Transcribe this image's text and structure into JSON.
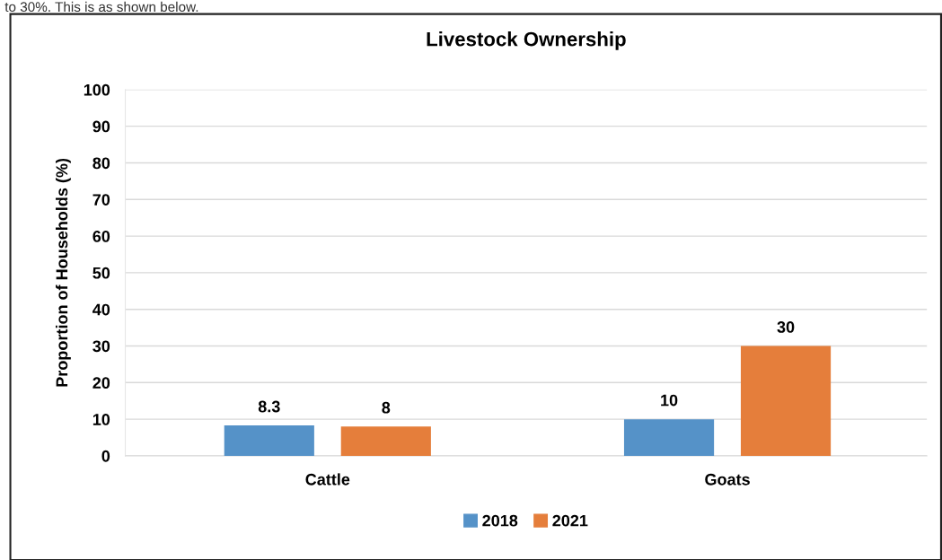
{
  "chart_data": {
    "type": "bar",
    "title": "Livestock Ownership",
    "ylabel": "Proportion of Households (%)",
    "categories": [
      "Cattle",
      "Goats"
    ],
    "series": [
      {
        "name": "2018",
        "color": "#5592c8",
        "values": [
          8.3,
          10
        ]
      },
      {
        "name": "2021",
        "color": "#e57e3b",
        "values": [
          8,
          30
        ]
      }
    ],
    "ylim": [
      0,
      100
    ],
    "yticks": [
      0,
      10,
      20,
      30,
      40,
      50,
      60,
      70,
      80,
      90,
      100
    ],
    "grid": "y",
    "legend": "bottom",
    "data_labels": true,
    "annotations": [
      "to 30%. This is as shown below."
    ]
  }
}
